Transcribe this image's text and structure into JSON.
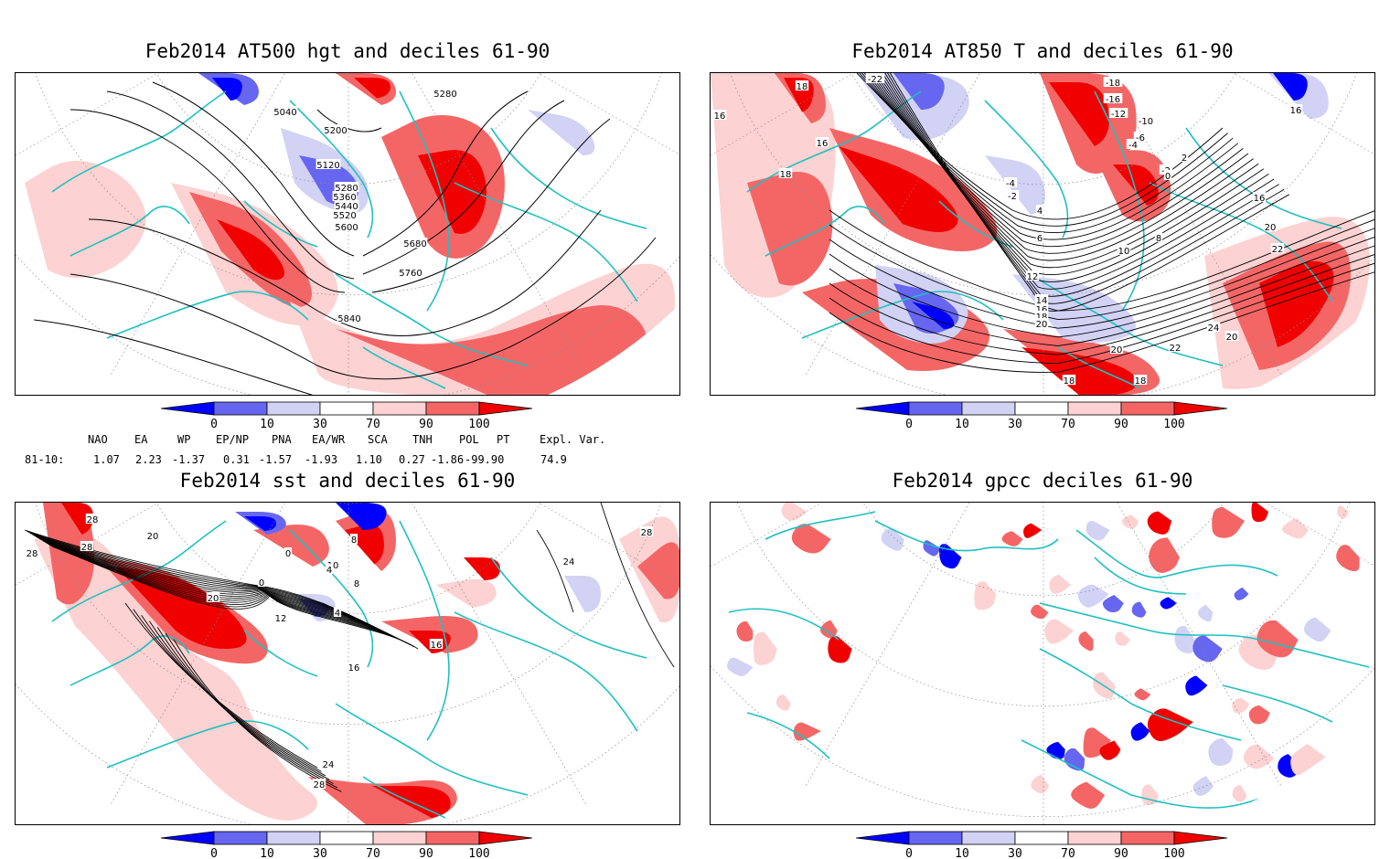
{
  "panels": [
    {
      "id": "z500",
      "title": "Feb2014 AT500 hgt and deciles 61-90",
      "contour_labels": [
        "5280",
        "5040",
        "5200",
        "5120",
        "5280",
        "5360",
        "5440",
        "5520",
        "5600",
        "5680",
        "5760",
        "5840"
      ]
    },
    {
      "id": "t850",
      "title": "Feb2014 AT850 T and deciles 61-90",
      "contour_labels": [
        "18",
        "16",
        "16",
        "18",
        "-22",
        "-18",
        "-16",
        "-12",
        "-10",
        "-6",
        "-4",
        "-2",
        "0",
        "2",
        "-2",
        "-4",
        "4",
        "6",
        "8",
        "10",
        "12",
        "14",
        "16",
        "18",
        "20",
        "16",
        "20",
        "22",
        "24",
        "22",
        "20",
        "18",
        "18",
        "20",
        "16"
      ]
    },
    {
      "id": "sst",
      "title": "Feb2014 sst and deciles 61-90",
      "contour_labels": [
        "28",
        "28",
        "28",
        "20",
        "0",
        "10",
        "0",
        "4",
        "8",
        "4",
        "12",
        "20",
        "16",
        "16",
        "24",
        "24",
        "28",
        "28",
        "8"
      ]
    },
    {
      "id": "gpcc",
      "title": "Feb2014 gpcc deciles 61-90",
      "contour_labels": []
    }
  ],
  "colorbar": {
    "ticks": [
      "0",
      "10",
      "30",
      "70",
      "90",
      "100"
    ],
    "colors": [
      "#0000ff",
      "#6666f0",
      "#d2d2f5",
      "#ffffff",
      "#fdd2d2",
      "#f46666",
      "#f00000"
    ]
  },
  "indices": {
    "headers": [
      "NAO",
      "EA",
      "WP",
      "EP/NP",
      "PNA",
      "EA/WR",
      "SCA",
      "TNH",
      "POL",
      "PT",
      "Expl. Var."
    ],
    "row_label": "81-10:",
    "values": [
      "1.07",
      "2.23",
      "-1.37",
      "0.31",
      "-1.57",
      "-1.93",
      "1.10",
      "0.27",
      "-1.86",
      "-99.90",
      "74.9"
    ]
  },
  "style": {
    "coast_color": "#20c0c0",
    "contour_color": "#000000",
    "grid_color": "#999999"
  }
}
